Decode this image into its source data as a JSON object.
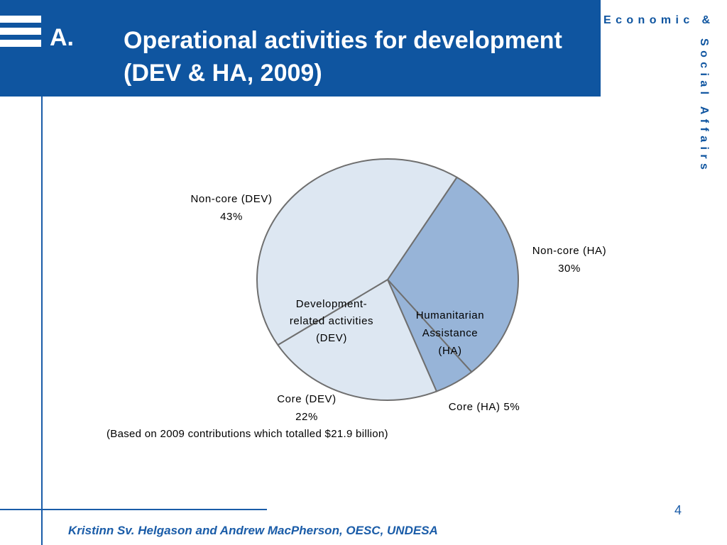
{
  "slide": {
    "label": "A.",
    "title_line1": "Operational activities for development",
    "title_line2": "(DEV & HA, 2009)",
    "brand_top": "Economic &",
    "brand_side": "Social Affairs",
    "page_number": "4",
    "footer": "Kristinn Sv. Helgason and Andrew MacPherson, OESC, UNDESA"
  },
  "chart_data": {
    "type": "pie",
    "note": "(Based on 2009 contributions which totalled $21.9 billion)",
    "slices": [
      {
        "name": "Non-core (DEV)",
        "value": 43,
        "label": "43%",
        "color": "#dde7f2"
      },
      {
        "name": "Non-core (HA)",
        "value": 30,
        "label": "30%",
        "color": "#97b4d8"
      },
      {
        "name": "Core (HA)",
        "value": 5,
        "label": "5%",
        "color": "#97b4d8"
      },
      {
        "name": "Core (DEV)",
        "value": 22,
        "label": "22%",
        "color": "#dde7f2"
      }
    ],
    "group_labels": {
      "dev": [
        "Development-",
        "related activities",
        "(DEV)"
      ],
      "ha": [
        "Humanitarian",
        "Assistance",
        "(HA)"
      ]
    }
  }
}
